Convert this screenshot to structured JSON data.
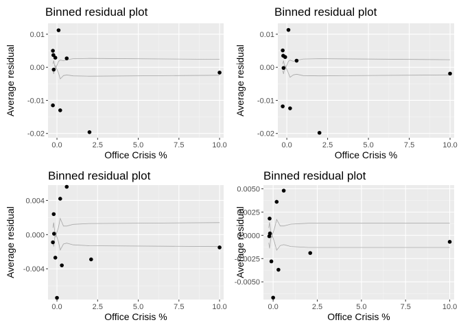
{
  "colors": {
    "panel_bg": "#ebebeb",
    "grid_major": "#ffffff",
    "grid_minor": "#f5f5f5",
    "points": "#000000",
    "bands": "#a6a6a6",
    "tick_text": "#4d4d4d"
  },
  "chart_data": [
    {
      "type": "scatter",
      "title": "Binned residual plot",
      "xlabel": "Office Crisis %",
      "ylabel": "Average residual",
      "xlim": [
        -0.55,
        10.25
      ],
      "ylim": [
        -0.0213,
        0.0133
      ],
      "xticks": [
        0,
        2.5,
        5,
        7.5,
        10
      ],
      "xtick_labels": [
        "0.0",
        "2.5",
        "5.0",
        "7.5",
        "10.0"
      ],
      "yticks": [
        -0.02,
        -0.01,
        0,
        0.01
      ],
      "ytick_labels": [
        "-0.02",
        "-0.01",
        "0.00",
        "0.01"
      ],
      "grid": true,
      "points": [
        {
          "x": -0.25,
          "y": 0.005
        },
        {
          "x": -0.22,
          "y": 0.0037
        },
        {
          "x": -0.2,
          "y": -0.0007
        },
        {
          "x": -0.1,
          "y": 0.0029
        },
        {
          "x": -0.25,
          "y": -0.0115
        },
        {
          "x": 0.1,
          "y": 0.0112
        },
        {
          "x": 0.2,
          "y": -0.013
        },
        {
          "x": 0.6,
          "y": 0.0027
        },
        {
          "x": 2.0,
          "y": -0.0196
        },
        {
          "x": 10.0,
          "y": -0.0016
        }
      ],
      "band_x": [
        -0.25,
        -0.2,
        -0.1,
        0.1,
        0.2,
        0.4,
        0.6,
        1.0,
        2.0,
        10.0
      ],
      "band_upper": [
        0.001,
        0.002,
        -0.0005,
        0.0018,
        0.0022,
        0.002,
        0.0023,
        0.0026,
        0.0027,
        0.0024
      ],
      "band_lower": [
        -0.001,
        -0.002,
        0.0005,
        -0.0018,
        -0.0035,
        -0.0025,
        -0.0023,
        -0.0026,
        -0.0027,
        -0.0024
      ]
    },
    {
      "type": "scatter",
      "title": "Binned residual plot",
      "xlabel": "Office Crisis %",
      "ylabel": "Average residual",
      "xlim": [
        -0.55,
        10.25
      ],
      "ylim": [
        -0.0213,
        0.0133
      ],
      "xticks": [
        0,
        2.5,
        5,
        7.5,
        10
      ],
      "xtick_labels": [
        "0.0",
        "2.5",
        "5.0",
        "7.5",
        "10.0"
      ],
      "yticks": [
        -0.02,
        -0.01,
        0,
        0.01
      ],
      "ytick_labels": [
        "-0.02",
        "-0.01",
        "0.00",
        "0.01"
      ],
      "grid": true,
      "points": [
        {
          "x": -0.25,
          "y": 0.0051
        },
        {
          "x": -0.22,
          "y": 0.0035
        },
        {
          "x": -0.2,
          "y": -0.0002
        },
        {
          "x": -0.1,
          "y": 0.0031
        },
        {
          "x": -0.25,
          "y": -0.0118
        },
        {
          "x": 0.1,
          "y": 0.0113
        },
        {
          "x": 0.2,
          "y": -0.0124
        },
        {
          "x": 0.6,
          "y": 0.002
        },
        {
          "x": 2.0,
          "y": -0.0198
        },
        {
          "x": 10.0,
          "y": -0.0019
        }
      ],
      "band_x": [
        -0.25,
        -0.2,
        -0.1,
        0.1,
        0.2,
        0.4,
        0.6,
        1.0,
        2.0,
        10.0
      ],
      "band_upper": [
        0.001,
        0.002,
        -0.0005,
        0.0018,
        0.0022,
        0.0018,
        0.0021,
        0.0025,
        0.0026,
        0.0023
      ],
      "band_lower": [
        -0.001,
        -0.002,
        0.0005,
        -0.0018,
        -0.003,
        -0.0023,
        -0.0021,
        -0.0025,
        -0.0026,
        -0.0023
      ]
    },
    {
      "type": "scatter",
      "title": "Binned residual plot",
      "xlabel": "Office Crisis %",
      "ylabel": "Average residual",
      "xlim": [
        -0.55,
        10.25
      ],
      "ylim": [
        -0.0076,
        0.0058
      ],
      "xticks": [
        0,
        2.5,
        5,
        7.5,
        10
      ],
      "xtick_labels": [
        "0.0",
        "2.5",
        "5.0",
        "7.5",
        "10.0"
      ],
      "yticks": [
        -0.004,
        0,
        0.004
      ],
      "ytick_labels": [
        "-0.004",
        "0.000",
        "0.004"
      ],
      "grid": true,
      "points": [
        {
          "x": -0.2,
          "y": 0.0024
        },
        {
          "x": -0.18,
          "y": 0.0001
        },
        {
          "x": -0.25,
          "y": -0.0009
        },
        {
          "x": -0.1,
          "y": -0.0027
        },
        {
          "x": 0.0,
          "y": -0.0074
        },
        {
          "x": 0.2,
          "y": 0.0042
        },
        {
          "x": 0.3,
          "y": -0.0036
        },
        {
          "x": 0.6,
          "y": 0.0056
        },
        {
          "x": 2.1,
          "y": -0.0029
        },
        {
          "x": 10.0,
          "y": -0.0015
        }
      ],
      "band_x": [
        -0.25,
        -0.2,
        -0.1,
        0.1,
        0.2,
        0.4,
        0.6,
        1.0,
        2.0,
        10.0
      ],
      "band_upper": [
        0.0008,
        0.0014,
        -0.0003,
        0.0009,
        0.0019,
        0.001,
        0.001,
        0.0012,
        0.0013,
        0.0014
      ],
      "band_lower": [
        -0.0008,
        -0.0014,
        0.0003,
        -0.0009,
        -0.0018,
        -0.0011,
        -0.001,
        -0.0012,
        -0.0013,
        -0.0014
      ]
    },
    {
      "type": "scatter",
      "title": "Binned residual plot",
      "xlabel": "Office Crisis %",
      "ylabel": "Average residual",
      "xlim": [
        -0.55,
        10.25
      ],
      "ylim": [
        -0.0069,
        0.0054
      ],
      "xticks": [
        0,
        2.5,
        5,
        7.5,
        10
      ],
      "xtick_labels": [
        "0.0",
        "2.5",
        "5.0",
        "7.5",
        "10.0"
      ],
      "yticks": [
        -0.005,
        -0.0025,
        0,
        0.0025,
        0.005
      ],
      "ytick_labels": [
        "-0.0050",
        "-0.0025",
        "0.0000",
        "0.0025",
        "0.0050"
      ],
      "grid": true,
      "points": [
        {
          "x": -0.2,
          "y": 0.0018
        },
        {
          "x": -0.18,
          "y": 0.0002
        },
        {
          "x": -0.22,
          "y": -0.0001
        },
        {
          "x": -0.1,
          "y": -0.0028
        },
        {
          "x": 0.0,
          "y": -0.0067
        },
        {
          "x": 0.2,
          "y": 0.0036
        },
        {
          "x": 0.3,
          "y": -0.0037
        },
        {
          "x": 0.6,
          "y": 0.0048
        },
        {
          "x": 2.1,
          "y": -0.0019
        },
        {
          "x": 10.0,
          "y": -0.0007
        }
      ],
      "band_x": [
        -0.25,
        -0.2,
        -0.1,
        0.1,
        0.2,
        0.4,
        0.6,
        1.0,
        2.0,
        10.0
      ],
      "band_upper": [
        0.0008,
        0.0014,
        -0.0003,
        0.0009,
        0.0017,
        0.001,
        0.001,
        0.0012,
        0.0013,
        0.0013
      ],
      "band_lower": [
        -0.0008,
        -0.0014,
        0.0003,
        -0.0009,
        -0.0016,
        -0.0011,
        -0.001,
        -0.0012,
        -0.0013,
        -0.0013
      ]
    }
  ]
}
